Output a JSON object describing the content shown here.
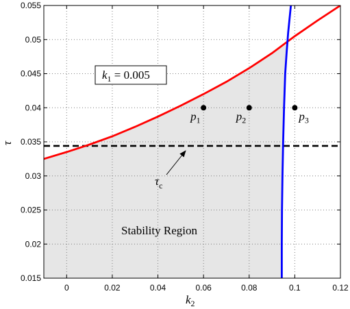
{
  "chart_data": {
    "type": "line",
    "xlabel": {
      "main": "k",
      "sub": "2"
    },
    "ylabel": "τ",
    "xlim": [
      -0.01,
      0.12
    ],
    "ylim": [
      0.015,
      0.055
    ],
    "xticks": [
      0,
      0.02,
      0.04,
      0.06,
      0.08,
      0.1,
      0.12
    ],
    "xtick_labels": [
      "0",
      "0.02",
      "0.04",
      "0.06",
      "0.08",
      "0.1",
      "0.12"
    ],
    "yticks": [
      0.015,
      0.02,
      0.025,
      0.03,
      0.035,
      0.04,
      0.045,
      0.05,
      0.055
    ],
    "ytick_labels": [
      "0.015",
      "0.02",
      "0.025",
      "0.03",
      "0.035",
      "0.04",
      "0.045",
      "0.05",
      "0.055"
    ],
    "grid": true,
    "colors": {
      "red": "#ff0000",
      "blue": "#0000ff",
      "region": "#e6e6e6",
      "dash": "#000000"
    },
    "series": [
      {
        "color": "#ff0000",
        "x": [
          -0.01,
          0.0,
          0.01,
          0.02,
          0.03,
          0.04,
          0.05,
          0.06,
          0.07,
          0.08,
          0.09,
          0.1,
          0.11,
          0.12
        ],
        "y": [
          0.0325,
          0.0335,
          0.0346,
          0.0358,
          0.0372,
          0.0387,
          0.0403,
          0.042,
          0.0438,
          0.0458,
          0.048,
          0.0505,
          0.0528,
          0.055
        ]
      },
      {
        "color": "#0000ff",
        "x": [
          0.0943,
          0.0943,
          0.0944,
          0.0946,
          0.0949,
          0.0953,
          0.0958,
          0.0964,
          0.0971,
          0.098,
          0.0983
        ],
        "y": [
          0.015,
          0.02,
          0.025,
          0.03,
          0.035,
          0.04,
          0.045,
          0.048,
          0.051,
          0.054,
          0.055
        ]
      }
    ],
    "threshold": {
      "y": 0.0344,
      "style": "dashed"
    },
    "shaded_region_label": "Stability Region",
    "points": [
      {
        "name": "p",
        "sub": "1",
        "x": 0.06,
        "y": 0.04
      },
      {
        "name": "p",
        "sub": "2",
        "x": 0.08,
        "y": 0.04
      },
      {
        "name": "p",
        "sub": "3",
        "x": 0.1,
        "y": 0.04
      }
    ],
    "annotations": {
      "tau_c": {
        "main": "τ",
        "sub": "c"
      },
      "k1_box": {
        "main": "k",
        "sub": "1",
        "rest": " = 0.005"
      }
    }
  }
}
